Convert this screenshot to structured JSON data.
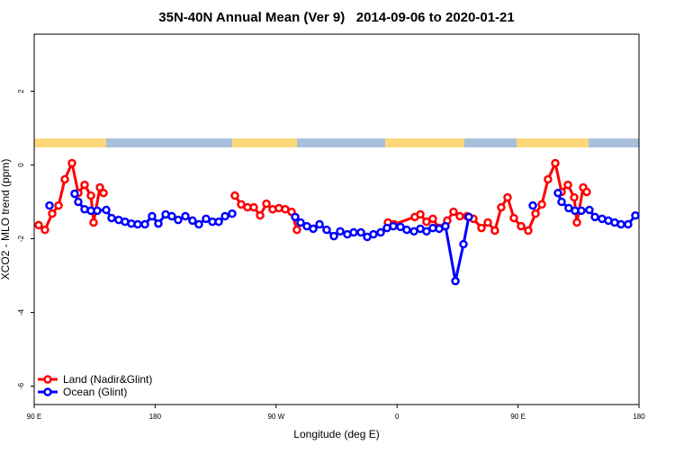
{
  "chart_data": {
    "type": "line",
    "title": "35N-40N Annual Mean (Ver 9)   2014-09-06 to 2020-01-21",
    "x_label": "Longitude (deg E)",
    "y_label": "XCO2 - MLO trend (ppm)",
    "xlim": [
      90,
      540
    ],
    "ylim": [
      -6.5,
      3.55
    ],
    "xticks": [
      {
        "value": 90,
        "label": "90 E"
      },
      180,
      {
        "value": 270,
        "label": "90 W"
      },
      {
        "value": 360,
        "label": "0"
      },
      {
        "value": 450,
        "label": "90 E"
      },
      {
        "value": 540,
        "label": "180"
      }
    ],
    "yticks": [
      2,
      0,
      -2,
      -4,
      -6
    ],
    "legend": "bottom-left",
    "series": [
      {
        "name": "Land (Nadir&Glint)",
        "color": "#ff0000",
        "x": [
          93.3,
          98.0,
          103.4,
          108.1,
          112.8,
          118.1,
          122.8,
          127.5,
          132.2,
          134.2,
          138.9,
          141.6,
          null,
          239.3,
          244.0,
          248.7,
          253.4,
          258.1,
          262.8,
          267.4,
          272.1,
          276.8,
          281.5,
          285.5,
          null,
          353.2,
          357.8,
          373.2,
          377.3,
          381.9,
          386.6,
          391.3,
          397.3,
          402.0,
          406.7,
          412.1,
          416.8,
          422.8,
          427.5,
          432.8,
          437.5,
          442.2,
          446.9,
          452.3,
          457.6,
          463.0,
          467.7,
          472.3,
          477.7,
          482.4,
          487.1,
          491.8,
          493.8,
          498.5,
          501.1
        ],
        "values": [
          -1.63,
          -1.76,
          -1.32,
          -1.1,
          -0.39,
          0.05,
          -0.76,
          -0.54,
          -0.83,
          -1.56,
          -0.61,
          -0.76,
          null,
          -0.83,
          -1.07,
          -1.15,
          -1.15,
          -1.37,
          -1.05,
          -1.2,
          -1.17,
          -1.2,
          -1.27,
          -1.76,
          null,
          -1.56,
          -1.61,
          -1.41,
          -1.34,
          -1.54,
          -1.46,
          -1.71,
          -1.51,
          -1.27,
          -1.39,
          -1.39,
          -1.46,
          -1.71,
          -1.56,
          -1.78,
          -1.15,
          -0.88,
          -1.44,
          -1.66,
          -1.78,
          -1.32,
          -1.07,
          -0.39,
          0.05,
          -0.73,
          -0.54,
          -0.88,
          -1.56,
          -0.61,
          -0.73
        ]
      },
      {
        "name": "Ocean (Glint)",
        "color": "#0000ff",
        "x": [
          101.4,
          null,
          120.1,
          122.8,
          127.5,
          132.2,
          136.9,
          143.6,
          147.6,
          152.9,
          157.6,
          162.3,
          167.0,
          172.4,
          177.7,
          182.4,
          187.8,
          192.4,
          197.1,
          202.5,
          207.8,
          212.5,
          217.9,
          222.6,
          227.3,
          232.0,
          237.3,
          null,
          284.2,
          288.2,
          292.9,
          297.6,
          302.3,
          307.6,
          313.0,
          317.7,
          323.0,
          327.7,
          333.1,
          337.8,
          342.4,
          347.8,
          352.5,
          357.2,
          362.5,
          367.2,
          372.6,
          377.3,
          381.9,
          386.6,
          391.3,
          396.0,
          403.4,
          409.4,
          413.4,
          null,
          461.0,
          null,
          479.7,
          482.4,
          487.7,
          492.4,
          497.1,
          503.1,
          507.2,
          512.5,
          517.2,
          521.9,
          526.6,
          531.9,
          537.3
        ],
        "values": [
          -1.1,
          null,
          -0.78,
          -1.0,
          -1.2,
          -1.24,
          -1.24,
          -1.22,
          -1.44,
          -1.49,
          -1.54,
          -1.59,
          -1.61,
          -1.61,
          -1.39,
          -1.59,
          -1.34,
          -1.39,
          -1.49,
          -1.39,
          -1.51,
          -1.61,
          -1.46,
          -1.54,
          -1.54,
          -1.39,
          -1.32,
          null,
          -1.41,
          -1.56,
          -1.66,
          -1.73,
          -1.61,
          -1.76,
          -1.93,
          -1.8,
          -1.88,
          -1.83,
          -1.83,
          -1.95,
          -1.88,
          -1.83,
          -1.71,
          -1.66,
          -1.68,
          -1.76,
          -1.8,
          -1.73,
          -1.8,
          -1.71,
          -1.73,
          -1.66,
          -3.15,
          -2.15,
          -1.41,
          null,
          -1.1,
          null,
          -0.76,
          -1.0,
          -1.17,
          -1.24,
          -1.24,
          -1.22,
          -1.41,
          -1.46,
          -1.51,
          -1.56,
          -1.61,
          -1.61,
          -1.37
        ]
      }
    ]
  }
}
